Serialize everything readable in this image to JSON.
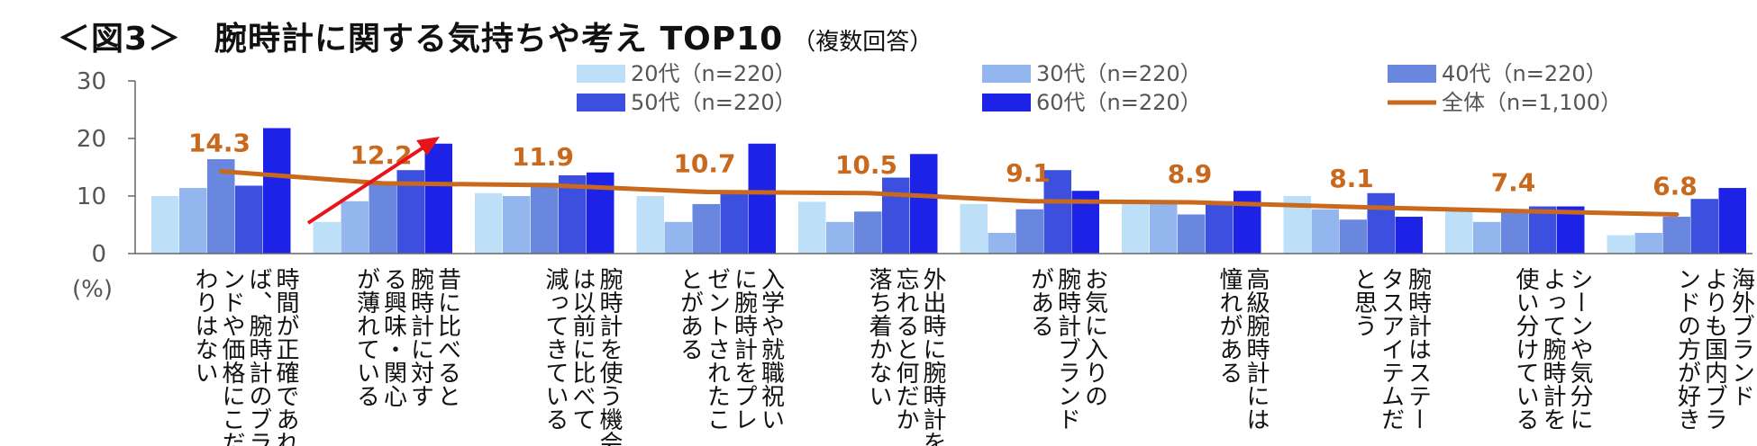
{
  "title": "＜図3＞　腕時計に関する気持ちや考え TOP10",
  "title_note": "（複数回答）",
  "colors": {
    "s20": "#bde0f8",
    "s30": "#93b6ee",
    "s40": "#6a87e0",
    "s50": "#3d4fde",
    "s60": "#1c22e6",
    "total": "#c8691e",
    "arrow": "#e8141b"
  },
  "chart_data": {
    "type": "bar",
    "title": "＜図3＞　腕時計に関する気持ちや考え TOP10",
    "ylabel": "(%)",
    "ylim": [
      0,
      30
    ],
    "yticks": [
      "0",
      "10",
      "20",
      "30"
    ],
    "categories": [
      [
        "時間が正確であれ",
        "ば、腕時計のブラ",
        "ンドや価格にこだ",
        "わりはない"
      ],
      [
        "昔に比べると",
        "腕時計に対す",
        "る興味・関心",
        "が薄れている"
      ],
      [
        "腕時計を使う機会",
        "は以前に比べて",
        "減ってきている"
      ],
      [
        "入学や就職祝い",
        "に腕時計をプレ",
        "ゼントされたこ",
        "とがある"
      ],
      [
        "外出時に腕時計を",
        "忘れると何だか",
        "落ち着かない"
      ],
      [
        "お気に入りの",
        "腕時計ブランド",
        "がある"
      ],
      [
        "高級腕時計には",
        "憧れがある"
      ],
      [
        "腕時計はステー",
        "タスアイテムだ",
        "と思う"
      ],
      [
        "シーンや気分に",
        "よって腕時計を",
        "使い分けている"
      ],
      [
        "海外ブランド",
        "よりも国内ブラ",
        "ンドの方が好き"
      ]
    ],
    "series": [
      {
        "name": "20代（n=220）",
        "values": [
          10.0,
          5.5,
          10.5,
          10.0,
          9.0,
          8.6,
          9.0,
          10.0,
          7.5,
          3.2
        ]
      },
      {
        "name": "30代（n=220）",
        "values": [
          11.4,
          9.1,
          10.0,
          5.5,
          5.5,
          3.6,
          9.0,
          7.7,
          5.5,
          3.6
        ]
      },
      {
        "name": "40代（n=220）",
        "values": [
          16.4,
          12.3,
          12.3,
          8.6,
          7.3,
          7.7,
          6.8,
          5.9,
          7.3,
          6.4
        ]
      },
      {
        "name": "50代（n=220）",
        "values": [
          11.8,
          14.5,
          13.6,
          10.5,
          13.2,
          14.5,
          9.1,
          10.5,
          8.2,
          9.5
        ]
      },
      {
        "name": "60代（n=220）",
        "values": [
          21.8,
          19.1,
          14.1,
          19.1,
          17.3,
          10.9,
          10.9,
          6.4,
          8.2,
          11.4
        ]
      }
    ],
    "total": {
      "name": "全体（n=1,100）",
      "type": "line",
      "values": [
        14.3,
        12.2,
        11.9,
        10.7,
        10.5,
        9.1,
        8.9,
        8.1,
        7.4,
        6.8
      ],
      "labels": [
        "14.3",
        "12.2",
        "11.9",
        "10.7",
        "10.5",
        "9.1",
        "8.9",
        "8.1",
        "7.4",
        "6.8"
      ]
    },
    "legend_position": "top-right",
    "annotations": [
      {
        "type": "arrow",
        "category_index": 1
      }
    ]
  }
}
